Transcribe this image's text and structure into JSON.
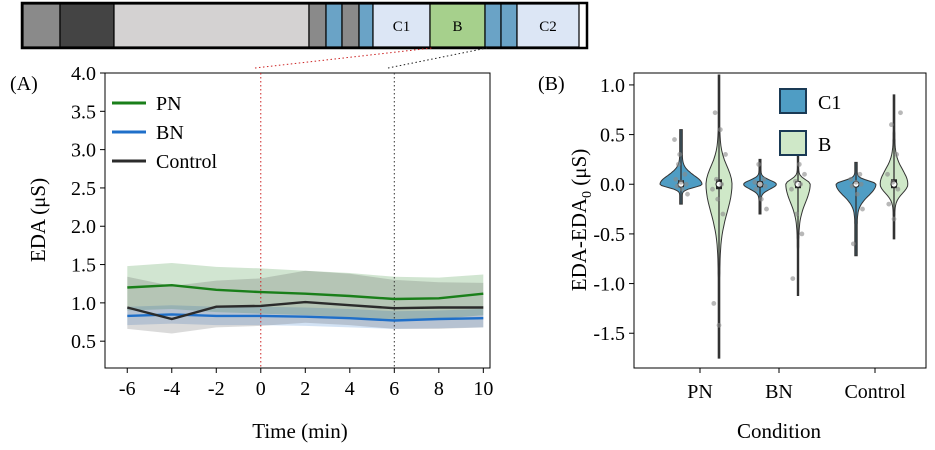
{
  "timeline_bar": {
    "segments": [
      {
        "label": "",
        "color": "#8a8a8a"
      },
      {
        "label": "",
        "color": "#444444"
      },
      {
        "label": "",
        "color": "#d4d2d2"
      },
      {
        "label": "",
        "color": "#8a8a8a"
      },
      {
        "label": "",
        "color": "#6aa3c6"
      },
      {
        "label": "",
        "color": "#8a8a8a"
      },
      {
        "label": "",
        "color": "#6aa3c6"
      },
      {
        "label": "C1",
        "color": "#dce6f5"
      },
      {
        "label": "B",
        "color": "#a6d08c"
      },
      {
        "label": "",
        "color": "#6aa3c6"
      },
      {
        "label": "",
        "color": "#6aa3c6"
      },
      {
        "label": "C2",
        "color": "#dce6f5"
      }
    ]
  },
  "chart_data": [
    {
      "type": "line",
      "panel_label": "(A)",
      "title": "",
      "xlabel": "Time (min)",
      "ylabel": "EDA (μS)",
      "xlim": [
        -7,
        10.3
      ],
      "ylim": [
        0.15,
        4.0
      ],
      "x_ticks": [
        -6,
        -4,
        -2,
        0,
        2,
        4,
        6,
        8,
        10
      ],
      "x_tick_labels": [
        "-6",
        "-4",
        "-2",
        "0",
        "2",
        "4",
        "6",
        "8",
        "10"
      ],
      "y_ticks": [
        0.5,
        1.0,
        1.5,
        2.0,
        2.5,
        3.0,
        3.5,
        4.0
      ],
      "y_tick_labels": [
        "0.5",
        "1.0",
        "1.5",
        "2.0",
        "2.5",
        "3.0",
        "3.5",
        "4.0"
      ],
      "x": [
        -6,
        -4,
        -2,
        0,
        2,
        4,
        6,
        8,
        10
      ],
      "series": [
        {
          "name": "PN",
          "color": "#1a7f1a",
          "values": [
            1.2,
            1.23,
            1.17,
            1.14,
            1.12,
            1.09,
            1.05,
            1.06,
            1.12
          ],
          "upper": [
            1.48,
            1.52,
            1.47,
            1.45,
            1.42,
            1.39,
            1.34,
            1.33,
            1.37
          ],
          "lower": [
            0.9,
            0.92,
            0.88,
            0.86,
            0.84,
            0.81,
            0.78,
            0.79,
            0.84
          ]
        },
        {
          "name": "BN",
          "color": "#1f6fc9",
          "values": [
            0.83,
            0.85,
            0.83,
            0.83,
            0.82,
            0.8,
            0.77,
            0.79,
            0.8
          ],
          "upper": [
            0.95,
            0.97,
            0.95,
            0.95,
            0.94,
            0.92,
            0.89,
            0.9,
            0.92
          ],
          "lower": [
            0.71,
            0.73,
            0.71,
            0.71,
            0.7,
            0.68,
            0.66,
            0.67,
            0.68
          ]
        },
        {
          "name": "Control",
          "color": "#2b2b2b",
          "values": [
            0.94,
            0.79,
            0.95,
            0.96,
            1.01,
            0.97,
            0.93,
            0.94,
            0.94
          ],
          "upper": [
            1.34,
            1.22,
            1.29,
            1.32,
            1.42,
            1.38,
            1.3,
            1.27,
            1.26
          ],
          "lower": [
            0.66,
            0.6,
            0.68,
            0.7,
            0.74,
            0.71,
            0.66,
            0.66,
            0.68
          ]
        }
      ],
      "vlines": [
        {
          "x": 0,
          "color": "#cc2222",
          "style": "dotted"
        },
        {
          "x": 6,
          "color": "#333333",
          "style": "dotted"
        }
      ],
      "legend_position": "top-left"
    },
    {
      "type": "violin",
      "panel_label": "(B)",
      "title": "",
      "xlabel": "Condition",
      "ylabel_main": "EDA-EDA",
      "ylabel_sub": "0",
      "ylabel_unit": " (μS)",
      "ylim": [
        -1.85,
        1.12
      ],
      "y_ticks": [
        -1.5,
        -1.0,
        -0.5,
        0.0,
        0.5,
        1.0
      ],
      "y_tick_labels": [
        "-1.5",
        "-1.0",
        "-0.5",
        "0.0",
        "0.5",
        "1.0"
      ],
      "categories": [
        "PN",
        "BN",
        "Control"
      ],
      "series": [
        {
          "name": "C1",
          "color": "#4f9dc4"
        },
        {
          "name": "B",
          "color": "#cfe8c8"
        }
      ],
      "violins": [
        {
          "category": "PN",
          "series": "C1",
          "min": -0.2,
          "max": 0.55,
          "median": 0.0,
          "q1": -0.03,
          "q3": 0.04,
          "width": 1.0,
          "points": [
            0.45,
            0.3,
            0.1,
            0.05,
            0.02,
            0.0,
            -0.02,
            -0.05,
            -0.1,
            0.2
          ]
        },
        {
          "category": "PN",
          "series": "B",
          "min": -1.75,
          "max": 1.1,
          "median": 0.0,
          "q1": -0.05,
          "q3": 0.05,
          "width": 0.62,
          "points": [
            0.72,
            0.55,
            0.3,
            0.05,
            0.0,
            -0.05,
            -0.15,
            -0.3,
            -1.2,
            -1.42
          ]
        },
        {
          "category": "BN",
          "series": "C1",
          "min": -0.3,
          "max": 0.25,
          "median": 0.0,
          "q1": -0.03,
          "q3": 0.03,
          "width": 0.78,
          "points": [
            0.2,
            0.05,
            0.02,
            0.0,
            -0.02,
            -0.05,
            -0.15,
            -0.25
          ]
        },
        {
          "category": "BN",
          "series": "B",
          "min": -1.12,
          "max": 0.28,
          "median": 0.0,
          "q1": -0.04,
          "q3": 0.03,
          "width": 0.58,
          "points": [
            0.2,
            0.1,
            0.03,
            0.0,
            -0.05,
            -0.3,
            -0.5,
            -0.95
          ]
        },
        {
          "category": "Control",
          "series": "C1",
          "min": -0.72,
          "max": 0.22,
          "median": 0.0,
          "q1": -0.02,
          "q3": 0.02,
          "width": 0.95,
          "points": [
            0.1,
            0.05,
            0.02,
            0.0,
            -0.02,
            -0.1,
            -0.25,
            -0.6
          ]
        },
        {
          "category": "Control",
          "series": "B",
          "min": -0.55,
          "max": 0.9,
          "median": 0.0,
          "q1": -0.04,
          "q3": 0.05,
          "width": 0.66,
          "points": [
            0.72,
            0.6,
            0.3,
            0.1,
            0.02,
            -0.05,
            -0.2,
            -0.35
          ]
        }
      ],
      "legend_position": "top-right"
    }
  ]
}
